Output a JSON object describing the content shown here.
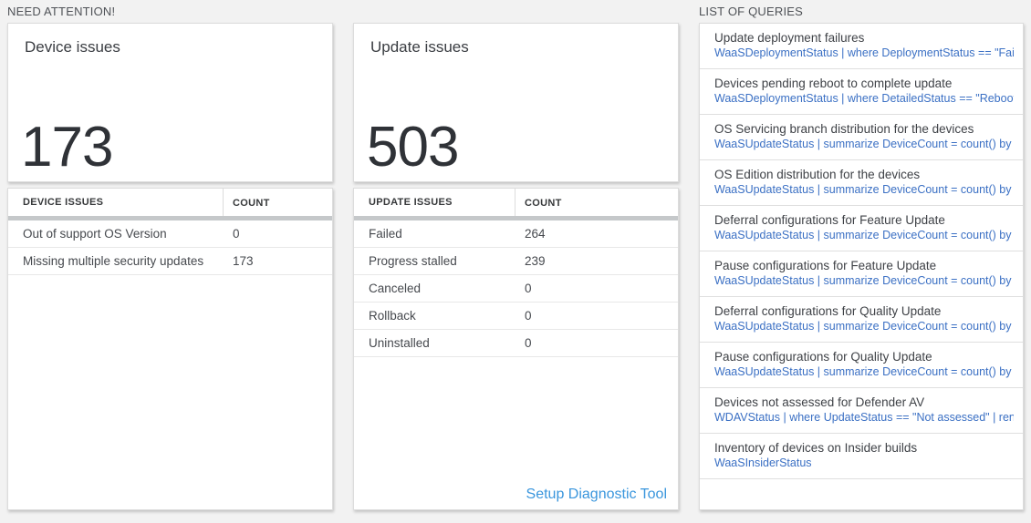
{
  "need_attention": {
    "header": "NEED ATTENTION!",
    "cards": [
      {
        "title": "Device issues",
        "big_number": "173",
        "table": {
          "columns": [
            "DEVICE ISSUES",
            "COUNT"
          ],
          "rows": [
            [
              "Out of support OS Version",
              "0"
            ],
            [
              "Missing multiple security updates",
              "173"
            ]
          ]
        }
      },
      {
        "title": "Update issues",
        "big_number": "503",
        "table": {
          "columns": [
            "UPDATE ISSUES",
            "COUNT"
          ],
          "rows": [
            [
              "Failed",
              "264"
            ],
            [
              "Progress stalled",
              "239"
            ],
            [
              "Canceled",
              "0"
            ],
            [
              "Rollback",
              "0"
            ],
            [
              "Uninstalled",
              "0"
            ]
          ]
        },
        "footer_link": "Setup Diagnostic Tool"
      }
    ]
  },
  "queries": {
    "header": "LIST OF QUERIES",
    "items": [
      {
        "title": "Update deployment failures",
        "query": "WaaSDeploymentStatus | where DeploymentStatus == \"Failed\" |..."
      },
      {
        "title": "Devices pending reboot to complete update",
        "query": "WaaSDeploymentStatus | where DetailedStatus == \"Reboot pend..."
      },
      {
        "title": "OS Servicing branch distribution for the devices",
        "query": "WaaSUpdateStatus | summarize DeviceCount = count() by OSSer..."
      },
      {
        "title": "OS Edition distribution for the devices",
        "query": "WaaSUpdateStatus | summarize DeviceCount = count() by OSEdit..."
      },
      {
        "title": "Deferral configurations for Feature Update",
        "query": "WaaSUpdateStatus | summarize DeviceCount = count() by Featur..."
      },
      {
        "title": "Pause configurations for Feature Update",
        "query": "WaaSUpdateStatus | summarize DeviceCount = count() by Featur..."
      },
      {
        "title": "Deferral configurations for Quality Update",
        "query": "WaaSUpdateStatus | summarize DeviceCount = count() by Qualit..."
      },
      {
        "title": "Pause configurations for Quality Update",
        "query": "WaaSUpdateStatus | summarize DeviceCount = count() by Qualit..."
      },
      {
        "title": "Devices not assessed for Defender AV",
        "query": "WDAVStatus | where UpdateStatus == \"Not assessed\" | render ta..."
      },
      {
        "title": "Inventory of devices on Insider builds",
        "query": "WaaSInsiderStatus"
      }
    ]
  },
  "colors": {
    "page_background": "#f2f2f2",
    "query_link_blue": "#3b70c4",
    "setup_link_blue": "#3a96dd",
    "header_bar_gray": "#c5c8ca",
    "big_number_color": "#2f3237"
  }
}
